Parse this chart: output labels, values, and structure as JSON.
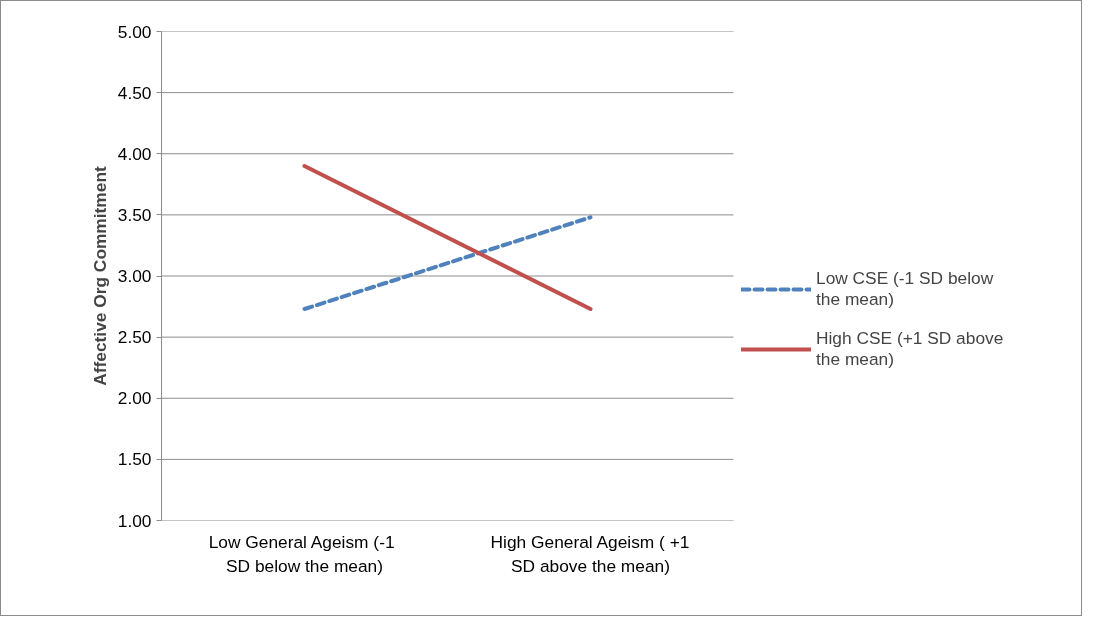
{
  "chart_data": {
    "type": "line",
    "ylabel": "Affective Org Commitment",
    "categories": [
      "Low General Ageism  (-1 SD below the mean)",
      "High General Ageism ( +1 SD above the mean)"
    ],
    "series": [
      {
        "name": "Low CSE (-1 SD below the mean)",
        "color": "#4f81bd",
        "values": [
          2.73,
          3.48
        ],
        "line_style": "dashed"
      },
      {
        "name": "High CSE (+1 SD above the mean)",
        "color": "#c0504d",
        "values": [
          3.9,
          2.73
        ],
        "line_style": "solid"
      }
    ],
    "ylim": [
      1.0,
      5.0
    ],
    "yticks": [
      {
        "value": 1.0,
        "label": "1.00"
      },
      {
        "value": 1.5,
        "label": "1.50"
      },
      {
        "value": 2.0,
        "label": "2.00"
      },
      {
        "value": 2.5,
        "label": "2.50"
      },
      {
        "value": 3.0,
        "label": "3.00"
      },
      {
        "value": 3.5,
        "label": "3.50"
      },
      {
        "value": 4.0,
        "label": "4.00"
      },
      {
        "value": 4.5,
        "label": "4.50"
      },
      {
        "value": 5.0,
        "label": "5.00"
      }
    ],
    "grid": "y",
    "legend": "right",
    "marker": "none"
  }
}
